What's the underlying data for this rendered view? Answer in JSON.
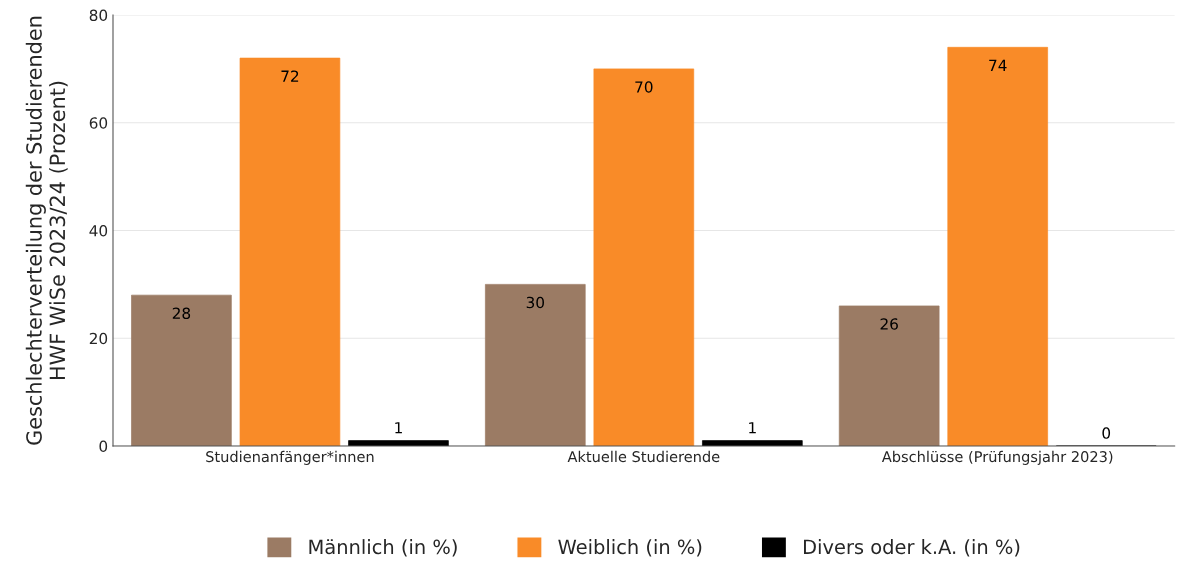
{
  "chart_data": {
    "type": "bar",
    "ylabel": "Geschlechterverteilung der Studierenden\nHWF WiSe 2023/24 (Prozent)",
    "categories": [
      "Studienanfänger*innen",
      "Aktuelle Studierende",
      "Abschlüsse (Prüfungsjahr 2023)"
    ],
    "series": [
      {
        "name": "Männlich (in %)",
        "color": "#9b7b64",
        "values": [
          28,
          30,
          26
        ]
      },
      {
        "name": "Weiblich (in %)",
        "color": "#f98b28",
        "values": [
          72,
          70,
          74
        ]
      },
      {
        "name": "Divers oder k.A. (in %)",
        "color": "#000000",
        "values": [
          1,
          1,
          0
        ]
      }
    ],
    "ylim": [
      0,
      80
    ],
    "yticks": [
      0,
      20,
      40,
      60,
      80
    ],
    "grid": "y",
    "legend": "bottom",
    "data_labels": true
  }
}
